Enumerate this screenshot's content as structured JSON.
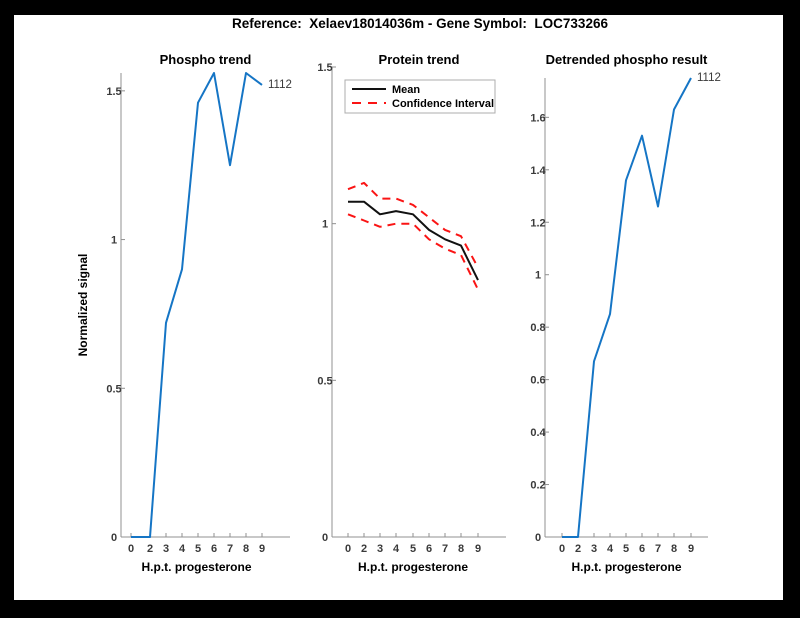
{
  "figure": {
    "title": "Reference:  Xelaev18014036m - Gene Symbol:  LOC733266"
  },
  "colors": {
    "blue": "#1575C5",
    "red": "#FA1414",
    "black": "#111111",
    "axis": "#909090",
    "tick_label": "#3A3A3A",
    "frame": "#000000",
    "background": "#FFFFFF"
  },
  "chart_data": [
    {
      "type": "line",
      "title": "Phospho trend",
      "xlabel": "H.p.t. progesterone",
      "ylabel": "Normalized signal",
      "x": [
        0,
        2,
        3,
        4,
        5,
        6,
        7,
        8,
        9
      ],
      "x_tick_labels": [
        "0",
        "2",
        "3",
        "4",
        "5",
        "6",
        "7",
        "8",
        "9"
      ],
      "y_ticks": [
        0,
        0.5,
        1,
        1.5
      ],
      "y_tick_labels": [
        "0",
        "0.5",
        "1",
        "1.5"
      ],
      "ylim": [
        0,
        1.56
      ],
      "grid": false,
      "legend": null,
      "end_label": "1112",
      "series": [
        {
          "name": "phospho-signal",
          "color": "blue",
          "style": "solid",
          "values": [
            0,
            0,
            0.72,
            0.9,
            1.46,
            1.56,
            1.25,
            1.56,
            1.52
          ]
        }
      ]
    },
    {
      "type": "line",
      "title": "Protein trend",
      "xlabel": "H.p.t. progesterone",
      "ylabel": "",
      "x": [
        0,
        2,
        3,
        4,
        5,
        6,
        7,
        8,
        9
      ],
      "x_tick_labels": [
        "0",
        "2",
        "3",
        "4",
        "5",
        "6",
        "7",
        "8",
        "9"
      ],
      "y_ticks": [
        0,
        0.5,
        1,
        1.5
      ],
      "y_tick_labels": [
        "0",
        "0.5",
        "1",
        "1.5"
      ],
      "ylim": [
        0,
        1.5
      ],
      "grid": false,
      "legend": {
        "position": "northwest",
        "entries": [
          {
            "label": "Mean",
            "color": "black",
            "style": "solid"
          },
          {
            "label": "Confidence Interval",
            "color": "red",
            "style": "dashed"
          }
        ]
      },
      "end_label": null,
      "series": [
        {
          "name": "confidence-upper",
          "color": "red",
          "style": "dashed",
          "values": [
            1.11,
            1.13,
            1.08,
            1.08,
            1.06,
            1.02,
            0.98,
            0.96,
            0.86
          ]
        },
        {
          "name": "confidence-lower",
          "color": "red",
          "style": "dashed",
          "values": [
            1.03,
            1.01,
            0.99,
            1.0,
            1.0,
            0.95,
            0.92,
            0.9,
            0.79
          ]
        },
        {
          "name": "mean",
          "color": "black",
          "style": "solid",
          "values": [
            1.07,
            1.07,
            1.03,
            1.04,
            1.03,
            0.98,
            0.95,
            0.93,
            0.82
          ]
        }
      ]
    },
    {
      "type": "line",
      "title": "Detrended phospho result",
      "xlabel": "H.p.t. progesterone",
      "ylabel": "",
      "x": [
        0,
        2,
        3,
        4,
        5,
        6,
        7,
        8,
        9
      ],
      "x_tick_labels": [
        "0",
        "2",
        "3",
        "4",
        "5",
        "6",
        "7",
        "8",
        "9"
      ],
      "y_ticks": [
        0,
        0.2,
        0.4,
        0.6,
        0.8,
        1,
        1.2,
        1.4,
        1.6
      ],
      "y_tick_labels": [
        "0",
        "0.2",
        "0.4",
        "0.6",
        "0.8",
        "1",
        "1.2",
        "1.4",
        "1.6"
      ],
      "ylim": [
        0,
        1.75
      ],
      "grid": false,
      "legend": null,
      "end_label": "1112",
      "series": [
        {
          "name": "detrended-phospho-signal",
          "color": "blue",
          "style": "solid",
          "values": [
            0,
            0,
            0.67,
            0.85,
            1.36,
            1.53,
            1.26,
            1.63,
            1.75
          ]
        }
      ]
    }
  ]
}
